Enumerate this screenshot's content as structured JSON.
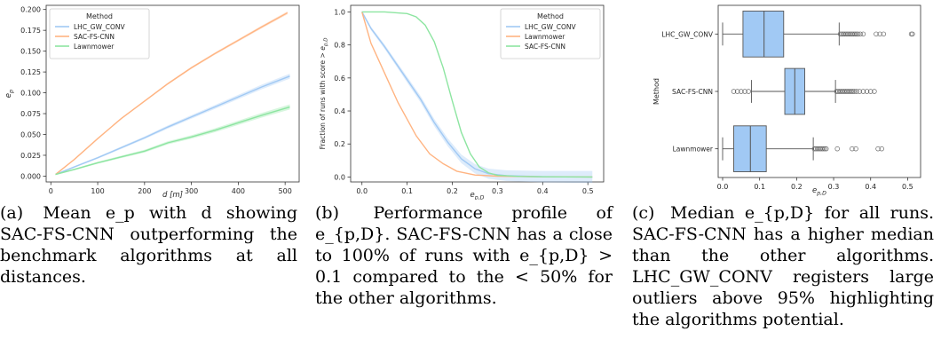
{
  "chart_data": [
    {
      "type": "line",
      "panel": "a",
      "xlabel": "d [m]",
      "ylabel": "e_p",
      "xlim": [
        -10,
        530
      ],
      "ylim": [
        -0.007,
        0.205
      ],
      "xticks": [
        0,
        100,
        200,
        300,
        400,
        500
      ],
      "yticks": [
        0.0,
        0.025,
        0.05,
        0.075,
        0.1,
        0.125,
        0.15,
        0.175,
        0.2
      ],
      "ytick_labels": [
        "0.000",
        "0.025",
        "0.050",
        "0.075",
        "0.100",
        "0.125",
        "0.150",
        "0.175",
        "0.200"
      ],
      "legend": {
        "title": "Method",
        "placement": "top-left"
      },
      "series": [
        {
          "name": "LHC_GW_CONV",
          "color": "#a1c9f4",
          "band": 0.0025,
          "x": [
            10,
            50,
            100,
            150,
            200,
            250,
            300,
            350,
            400,
            450,
            510
          ],
          "y": [
            0.002,
            0.011,
            0.022,
            0.034,
            0.046,
            0.059,
            0.071,
            0.083,
            0.095,
            0.107,
            0.12
          ]
        },
        {
          "name": "SAC-FS-CNN",
          "color": "#ffb482",
          "band": 0.0015,
          "x": [
            10,
            50,
            100,
            150,
            200,
            250,
            300,
            350,
            400,
            450,
            505
          ],
          "y": [
            0.002,
            0.02,
            0.045,
            0.069,
            0.09,
            0.111,
            0.13,
            0.147,
            0.163,
            0.179,
            0.196
          ]
        },
        {
          "name": "Lawnmower",
          "color": "#8de5a1",
          "band": 0.0025,
          "x": [
            10,
            50,
            100,
            150,
            200,
            250,
            300,
            350,
            400,
            450,
            510
          ],
          "y": [
            0.002,
            0.008,
            0.016,
            0.023,
            0.03,
            0.04,
            0.047,
            0.055,
            0.064,
            0.073,
            0.083
          ]
        }
      ]
    },
    {
      "type": "line",
      "panel": "b",
      "xlabel": "e_{p,D}",
      "ylabel": "Fraction of runs with score > e_{p,D}",
      "xlim": [
        -0.025,
        0.535
      ],
      "ylim": [
        -0.03,
        1.04
      ],
      "xticks": [
        0.0,
        0.1,
        0.2,
        0.3,
        0.4,
        0.5
      ],
      "xtick_labels": [
        "0.0",
        "0.1",
        "0.2",
        "0.3",
        "0.4",
        "0.5"
      ],
      "yticks": [
        0.0,
        0.2,
        0.4,
        0.6,
        0.8,
        1.0
      ],
      "ytick_labels": [
        "0.0",
        "0.2",
        "0.4",
        "0.6",
        "0.8",
        "1.0"
      ],
      "legend": {
        "title": "Method",
        "placement": "top-right"
      },
      "series": [
        {
          "name": "LHC_GW_CONV",
          "color": "#a1c9f4",
          "band": 0.03,
          "x": [
            0.0,
            0.02,
            0.05,
            0.08,
            0.1,
            0.13,
            0.16,
            0.19,
            0.22,
            0.25,
            0.28,
            0.32,
            0.4,
            0.51
          ],
          "y": [
            1.0,
            0.9,
            0.79,
            0.67,
            0.59,
            0.47,
            0.33,
            0.21,
            0.11,
            0.05,
            0.02,
            0.008,
            0.002,
            0.0
          ]
        },
        {
          "name": "Lawnmower",
          "color": "#ffb482",
          "band": 0.0,
          "x": [
            0.0,
            0.02,
            0.04,
            0.06,
            0.08,
            0.1,
            0.12,
            0.15,
            0.18,
            0.21,
            0.25,
            0.3,
            0.4,
            0.51
          ],
          "y": [
            1.0,
            0.81,
            0.69,
            0.57,
            0.45,
            0.35,
            0.25,
            0.14,
            0.08,
            0.035,
            0.012,
            0.005,
            0.001,
            0.0
          ]
        },
        {
          "name": "SAC-FS-CNN",
          "color": "#8de5a1",
          "band": 0.0,
          "x": [
            0.0,
            0.05,
            0.1,
            0.12,
            0.14,
            0.16,
            0.18,
            0.2,
            0.22,
            0.24,
            0.26,
            0.28,
            0.3,
            0.35,
            0.4,
            0.51
          ],
          "y": [
            1.0,
            1.0,
            0.99,
            0.97,
            0.92,
            0.82,
            0.66,
            0.46,
            0.27,
            0.14,
            0.06,
            0.025,
            0.01,
            0.003,
            0.001,
            0.0
          ]
        }
      ]
    },
    {
      "type": "box",
      "panel": "c",
      "xlabel": "e_{p,D}",
      "ylabel": "Method",
      "xlim": [
        -0.012,
        0.535
      ],
      "xticks": [
        0.0,
        0.1,
        0.2,
        0.3,
        0.4,
        0.5
      ],
      "xtick_labels": [
        "0.0",
        "0.1",
        "0.2",
        "0.3",
        "0.4",
        "0.5"
      ],
      "color": "#a1c9f4",
      "boxes": [
        {
          "name": "LHC_GW_CONV",
          "whisker_low": 0.0,
          "q1": 0.055,
          "median": 0.112,
          "q3": 0.165,
          "whisker_high": 0.315,
          "outliers": [
            0.318,
            0.322,
            0.326,
            0.33,
            0.334,
            0.338,
            0.342,
            0.346,
            0.35,
            0.354,
            0.358,
            0.362,
            0.366,
            0.372,
            0.38,
            0.415,
            0.425,
            0.435,
            0.51,
            0.513
          ]
        },
        {
          "name": "SAC-FS-CNN",
          "whisker_low": 0.078,
          "q1": 0.168,
          "median": 0.195,
          "q3": 0.222,
          "whisker_high": 0.305,
          "outliers": [
            0.03,
            0.04,
            0.05,
            0.06,
            0.07,
            0.308,
            0.312,
            0.316,
            0.32,
            0.324,
            0.328,
            0.332,
            0.336,
            0.34,
            0.344,
            0.348,
            0.352,
            0.356,
            0.362,
            0.37,
            0.38,
            0.39,
            0.4,
            0.41
          ]
        },
        {
          "name": "Lawnmower",
          "whisker_low": 0.0,
          "q1": 0.03,
          "median": 0.075,
          "q3": 0.118,
          "whisker_high": 0.245,
          "outliers": [
            0.248,
            0.252,
            0.256,
            0.26,
            0.264,
            0.268,
            0.272,
            0.276,
            0.28,
            0.31,
            0.35,
            0.36,
            0.42,
            0.43
          ]
        }
      ]
    }
  ],
  "captions": [
    {
      "label": "(a)",
      "text": "Mean e_p with d showing SAC-FS-CNN outperforming the benchmark algorithms at all distances."
    },
    {
      "label": "(b)",
      "text": "Performance profile of e_{p,D}. SAC-FS-CNN has a close to 100% of runs with e_{p,D} > 0.1 compared to the < 50% for the other algorithms."
    },
    {
      "label": "(c)",
      "text": "Median e_{p,D} for all runs. SAC-FS-CNN has a higher median than the other algorithms. LHC_GW_CONV registers large outliers above 95% highlighting the algorithms potential."
    }
  ]
}
